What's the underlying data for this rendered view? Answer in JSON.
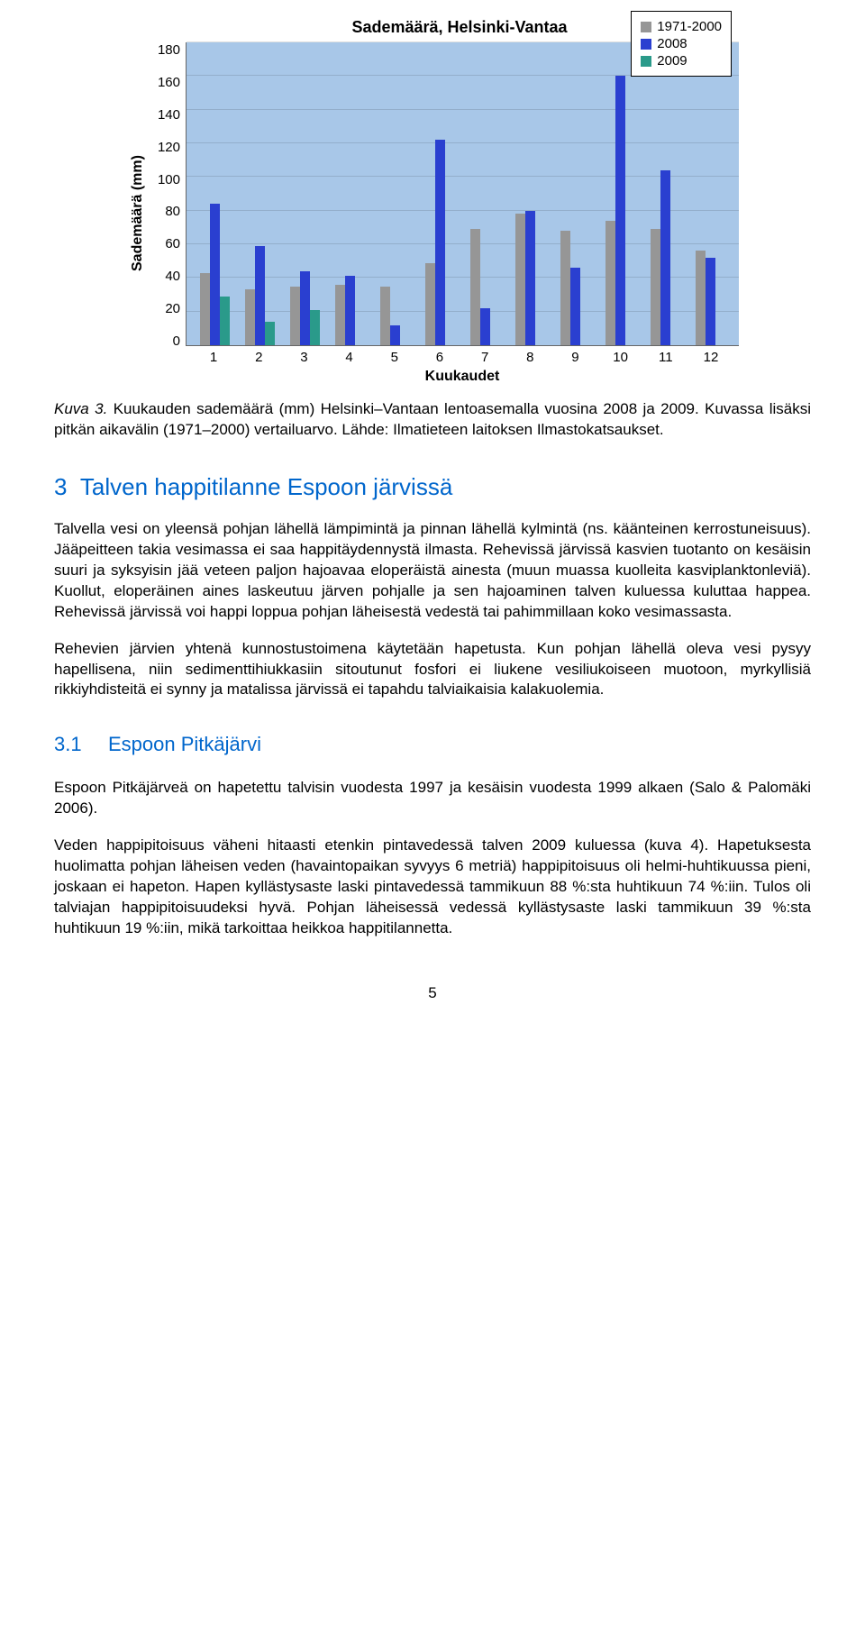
{
  "chart": {
    "type": "bar",
    "title": "Sademäärä, Helsinki-Vantaa",
    "y_label": "Sademäärä (mm)",
    "x_label": "Kuukaudet",
    "y_max": 180,
    "y_tick_step": 20,
    "y_ticks": [
      "180",
      "160",
      "140",
      "120",
      "100",
      "80",
      "60",
      "40",
      "20",
      "0"
    ],
    "x_ticks": [
      "1",
      "2",
      "3",
      "4",
      "5",
      "6",
      "7",
      "8",
      "9",
      "10",
      "11",
      "12"
    ],
    "background_color": "#a8c7e8",
    "grid_color": "rgba(0,0,0,0.12)",
    "legend": [
      {
        "label": "1971-2000",
        "color": "#969696"
      },
      {
        "label": "2008",
        "color": "#2a3fd0"
      },
      {
        "label": "2009",
        "color": "#2a9a8a"
      }
    ],
    "series": {
      "s1971_2000": {
        "color": "#969696",
        "values": [
          43,
          33,
          35,
          36,
          35,
          49,
          69,
          78,
          68,
          74,
          69,
          56
        ]
      },
      "s2008": {
        "color": "#2a3fd0",
        "values": [
          84,
          59,
          44,
          41,
          12,
          122,
          22,
          80,
          46,
          160,
          104,
          52
        ]
      },
      "s2009": {
        "color": "#2a9a8a",
        "values": [
          29,
          14,
          21,
          null,
          null,
          null,
          null,
          null,
          null,
          null,
          null,
          null
        ]
      }
    }
  },
  "caption_lead": "Kuva 3.",
  "caption_text": " Kuukauden sademäärä (mm) Helsinki–Vantaan lentoasemalla vuosina 2008 ja 2009. Kuvassa lisäksi pitkän aikavälin (1971–2000) vertailuarvo. Lähde: Ilmatieteen laitoksen Ilmastokatsaukset.",
  "section": {
    "num": "3",
    "title": "Talven happitilanne Espoon järvissä"
  },
  "para1": "Talvella vesi on yleensä pohjan lähellä lämpimintä ja pinnan lähellä kylmintä (ns. käänteinen kerrostuneisuus). Jääpeitteen takia vesimassa ei saa happitäydennystä ilmasta. Rehevissä järvissä kasvien tuotanto on kesäisin suuri ja syksyisin jää veteen paljon hajoavaa eloperäistä ainesta (muun muassa kuolleita kasviplanktonleviä). Kuollut, eloperäinen aines laskeutuu järven pohjalle ja sen hajoaminen talven kuluessa kuluttaa happea. Rehevissä järvissä voi happi loppua pohjan läheisestä vedestä tai pahimmillaan koko vesimassasta.",
  "para2": "Rehevien järvien yhtenä kunnostustoimena käytetään hapetusta. Kun pohjan lähellä oleva vesi pysyy hapellisena, niin sedimenttihiukkasiin sitoutunut fosfori ei liukene vesiliukoiseen muotoon, myrkyllisiä rikkiyhdisteitä ei synny ja matalissa järvissä ei tapahdu talviaikaisia kalakuolemia.",
  "subsection": {
    "num": "3.1",
    "title": "Espoon Pitkäjärvi"
  },
  "para3": "Espoon Pitkäjärveä on hapetettu talvisin vuodesta 1997 ja kesäisin vuodesta 1999 alkaen (Salo & Palomäki 2006).",
  "para4": "Veden happipitoisuus väheni hitaasti etenkin pintavedessä talven 2009 kuluessa (kuva 4). Hapetuksesta huolimatta pohjan läheisen veden (havaintopaikan syvyys 6 metriä) happipitoisuus oli helmi-huhtikuussa pieni, joskaan ei hapeton. Hapen kyllästysaste laski pintavedessä tammikuun 88 %:sta huhtikuun 74 %:iin. Tulos oli talviajan happipitoisuudeksi hyvä. Pohjan läheisessä vedessä kyllästysaste laski tammikuun 39 %:sta huhtikuun 19 %:iin, mikä tarkoittaa heikkoa happitilannetta.",
  "page_number": "5"
}
